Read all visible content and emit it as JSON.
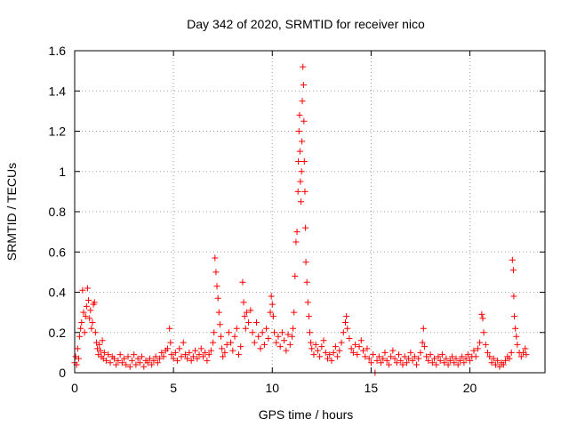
{
  "chart_data": {
    "type": "scatter",
    "title": "Day 342 of 2020, SRMTID for receiver nico",
    "xlabel": "GPS time / hours",
    "ylabel": "SRMTID / TECUs",
    "xlim": [
      0,
      23.8
    ],
    "ylim": [
      0,
      1.6
    ],
    "x_ticks": [
      0,
      5,
      10,
      15,
      20
    ],
    "x_tick_labels": [
      "0",
      "5",
      "10",
      "15",
      "20"
    ],
    "y_ticks": [
      0,
      0.2,
      0.4,
      0.6,
      0.8,
      1.0,
      1.2,
      1.4,
      1.6
    ],
    "y_tick_labels": [
      "0",
      "0.2",
      "0.4",
      "0.6",
      "0.8",
      "1",
      "1.2",
      "1.4",
      "1.6"
    ],
    "grid": true,
    "marker": "+",
    "color": "#ff0000",
    "series": [
      {
        "name": "SRMTID",
        "points": [
          [
            0.0,
            0.05
          ],
          [
            0.05,
            0.08
          ],
          [
            0.1,
            0.04
          ],
          [
            0.15,
            0.12
          ],
          [
            0.2,
            0.07
          ],
          [
            0.25,
            0.18
          ],
          [
            0.3,
            0.22
          ],
          [
            0.35,
            0.25
          ],
          [
            0.4,
            0.41
          ],
          [
            0.45,
            0.3
          ],
          [
            0.5,
            0.2
          ],
          [
            0.55,
            0.28
          ],
          [
            0.6,
            0.33
          ],
          [
            0.65,
            0.42
          ],
          [
            0.7,
            0.36
          ],
          [
            0.75,
            0.27
          ],
          [
            0.8,
            0.31
          ],
          [
            0.85,
            0.22
          ],
          [
            0.9,
            0.25
          ],
          [
            0.95,
            0.34
          ],
          [
            1.0,
            0.35
          ],
          [
            1.05,
            0.2
          ],
          [
            1.1,
            0.15
          ],
          [
            1.15,
            0.12
          ],
          [
            1.2,
            0.09
          ],
          [
            1.25,
            0.14
          ],
          [
            1.3,
            0.11
          ],
          [
            1.35,
            0.08
          ],
          [
            1.4,
            0.16
          ],
          [
            1.45,
            0.07
          ],
          [
            1.5,
            0.1
          ],
          [
            1.6,
            0.06
          ],
          [
            1.7,
            0.09
          ],
          [
            1.8,
            0.05
          ],
          [
            1.9,
            0.08
          ],
          [
            2.0,
            0.07
          ],
          [
            2.1,
            0.04
          ],
          [
            2.2,
            0.06
          ],
          [
            2.3,
            0.09
          ],
          [
            2.4,
            0.05
          ],
          [
            2.5,
            0.07
          ],
          [
            2.6,
            0.04
          ],
          [
            2.7,
            0.08
          ],
          [
            2.8,
            0.03
          ],
          [
            2.9,
            0.06
          ],
          [
            3.0,
            0.09
          ],
          [
            3.1,
            0.04
          ],
          [
            3.2,
            0.07
          ],
          [
            3.3,
            0.05
          ],
          [
            3.4,
            0.08
          ],
          [
            3.5,
            0.03
          ],
          [
            3.6,
            0.06
          ],
          [
            3.7,
            0.05
          ],
          [
            3.8,
            0.07
          ],
          [
            3.9,
            0.04
          ],
          [
            4.0,
            0.06
          ],
          [
            4.1,
            0.08
          ],
          [
            4.2,
            0.05
          ],
          [
            4.3,
            0.07
          ],
          [
            4.4,
            0.1
          ],
          [
            4.5,
            0.08
          ],
          [
            4.6,
            0.11
          ],
          [
            4.7,
            0.12
          ],
          [
            4.8,
            0.22
          ],
          [
            4.85,
            0.15
          ],
          [
            4.9,
            0.09
          ],
          [
            5.0,
            0.07
          ],
          [
            5.1,
            0.1
          ],
          [
            5.2,
            0.06
          ],
          [
            5.3,
            0.12
          ],
          [
            5.4,
            0.08
          ],
          [
            5.5,
            0.15
          ],
          [
            5.6,
            0.09
          ],
          [
            5.7,
            0.07
          ],
          [
            5.8,
            0.1
          ],
          [
            5.9,
            0.06
          ],
          [
            6.0,
            0.08
          ],
          [
            6.1,
            0.11
          ],
          [
            6.2,
            0.07
          ],
          [
            6.3,
            0.09
          ],
          [
            6.4,
            0.12
          ],
          [
            6.5,
            0.08
          ],
          [
            6.6,
            0.1
          ],
          [
            6.7,
            0.06
          ],
          [
            6.8,
            0.09
          ],
          [
            6.9,
            0.11
          ],
          [
            7.0,
            0.15
          ],
          [
            7.05,
            0.2
          ],
          [
            7.1,
            0.57
          ],
          [
            7.15,
            0.5
          ],
          [
            7.2,
            0.43
          ],
          [
            7.25,
            0.37
          ],
          [
            7.3,
            0.3
          ],
          [
            7.35,
            0.24
          ],
          [
            7.4,
            0.18
          ],
          [
            7.45,
            0.12
          ],
          [
            7.5,
            0.08
          ],
          [
            7.6,
            0.1
          ],
          [
            7.7,
            0.14
          ],
          [
            7.8,
            0.2
          ],
          [
            7.9,
            0.15
          ],
          [
            8.0,
            0.11
          ],
          [
            8.1,
            0.18
          ],
          [
            8.2,
            0.22
          ],
          [
            8.3,
            0.09
          ],
          [
            8.4,
            0.13
          ],
          [
            8.5,
            0.45
          ],
          [
            8.55,
            0.35
          ],
          [
            8.6,
            0.28
          ],
          [
            8.65,
            0.22
          ],
          [
            8.7,
            0.3
          ],
          [
            8.8,
            0.25
          ],
          [
            8.9,
            0.31
          ],
          [
            9.0,
            0.2
          ],
          [
            9.1,
            0.15
          ],
          [
            9.2,
            0.25
          ],
          [
            9.3,
            0.18
          ],
          [
            9.4,
            0.12
          ],
          [
            9.5,
            0.2
          ],
          [
            9.6,
            0.14
          ],
          [
            9.7,
            0.22
          ],
          [
            9.8,
            0.17
          ],
          [
            9.9,
            0.3
          ],
          [
            9.95,
            0.38
          ],
          [
            10.0,
            0.34
          ],
          [
            10.05,
            0.28
          ],
          [
            10.1,
            0.2
          ],
          [
            10.2,
            0.15
          ],
          [
            10.3,
            0.18
          ],
          [
            10.4,
            0.13
          ],
          [
            10.5,
            0.2
          ],
          [
            10.6,
            0.16
          ],
          [
            10.7,
            0.11
          ],
          [
            10.8,
            0.19
          ],
          [
            10.9,
            0.14
          ],
          [
            11.0,
            0.18
          ],
          [
            11.05,
            0.22
          ],
          [
            11.1,
            0.3
          ],
          [
            11.15,
            0.48
          ],
          [
            11.2,
            0.65
          ],
          [
            11.25,
            0.7
          ],
          [
            11.3,
            0.9
          ],
          [
            11.32,
            1.05
          ],
          [
            11.35,
            1.2
          ],
          [
            11.38,
            1.28
          ],
          [
            11.4,
            1.1
          ],
          [
            11.42,
            0.95
          ],
          [
            11.45,
            0.85
          ],
          [
            11.48,
            1.0
          ],
          [
            11.5,
            1.15
          ],
          [
            11.52,
            1.35
          ],
          [
            11.55,
            1.52
          ],
          [
            11.58,
            1.43
          ],
          [
            11.6,
            1.25
          ],
          [
            11.62,
            1.05
          ],
          [
            11.65,
            0.9
          ],
          [
            11.68,
            0.72
          ],
          [
            11.7,
            0.55
          ],
          [
            11.75,
            0.45
          ],
          [
            11.8,
            0.35
          ],
          [
            11.85,
            0.28
          ],
          [
            11.9,
            0.2
          ],
          [
            11.95,
            0.15
          ],
          [
            12.0,
            0.12
          ],
          [
            12.1,
            0.09
          ],
          [
            12.2,
            0.14
          ],
          [
            12.3,
            0.11
          ],
          [
            12.4,
            0.08
          ],
          [
            12.5,
            0.13
          ],
          [
            12.6,
            0.16
          ],
          [
            12.7,
            0.1
          ],
          [
            12.8,
            0.07
          ],
          [
            12.9,
            0.09
          ],
          [
            13.0,
            0.06
          ],
          [
            13.1,
            0.1
          ],
          [
            13.2,
            0.13
          ],
          [
            13.3,
            0.08
          ],
          [
            13.4,
            0.11
          ],
          [
            13.5,
            0.15
          ],
          [
            13.6,
            0.2
          ],
          [
            13.7,
            0.25
          ],
          [
            13.75,
            0.28
          ],
          [
            13.8,
            0.22
          ],
          [
            13.9,
            0.17
          ],
          [
            14.0,
            0.12
          ],
          [
            14.1,
            0.1
          ],
          [
            14.2,
            0.14
          ],
          [
            14.3,
            0.09
          ],
          [
            14.4,
            0.13
          ],
          [
            14.5,
            0.16
          ],
          [
            14.6,
            0.11
          ],
          [
            14.7,
            0.08
          ],
          [
            14.8,
            0.12
          ],
          [
            14.9,
            0.07
          ],
          [
            15.0,
            0.05
          ],
          [
            15.1,
            0.09
          ],
          [
            15.2,
            0.0
          ],
          [
            15.3,
            0.06
          ],
          [
            15.4,
            0.08
          ],
          [
            15.5,
            0.05
          ],
          [
            15.6,
            0.07
          ],
          [
            15.7,
            0.1
          ],
          [
            15.8,
            0.06
          ],
          [
            15.9,
            0.04
          ],
          [
            16.0,
            0.08
          ],
          [
            16.1,
            0.11
          ],
          [
            16.2,
            0.07
          ],
          [
            16.3,
            0.05
          ],
          [
            16.4,
            0.09
          ],
          [
            16.5,
            0.06
          ],
          [
            16.6,
            0.04
          ],
          [
            16.7,
            0.08
          ],
          [
            16.8,
            0.05
          ],
          [
            16.9,
            0.07
          ],
          [
            17.0,
            0.1
          ],
          [
            17.1,
            0.06
          ],
          [
            17.2,
            0.08
          ],
          [
            17.3,
            0.04
          ],
          [
            17.4,
            0.07
          ],
          [
            17.5,
            0.1
          ],
          [
            17.6,
            0.15
          ],
          [
            17.65,
            0.22
          ],
          [
            17.7,
            0.13
          ],
          [
            17.8,
            0.08
          ],
          [
            17.9,
            0.06
          ],
          [
            18.0,
            0.09
          ],
          [
            18.1,
            0.05
          ],
          [
            18.2,
            0.07
          ],
          [
            18.3,
            0.04
          ],
          [
            18.4,
            0.08
          ],
          [
            18.5,
            0.06
          ],
          [
            18.6,
            0.09
          ],
          [
            18.7,
            0.05
          ],
          [
            18.8,
            0.07
          ],
          [
            18.9,
            0.04
          ],
          [
            19.0,
            0.06
          ],
          [
            19.1,
            0.08
          ],
          [
            19.2,
            0.05
          ],
          [
            19.3,
            0.07
          ],
          [
            19.4,
            0.04
          ],
          [
            19.5,
            0.06
          ],
          [
            19.6,
            0.08
          ],
          [
            19.7,
            0.05
          ],
          [
            19.8,
            0.07
          ],
          [
            19.9,
            0.09
          ],
          [
            20.0,
            0.06
          ],
          [
            20.1,
            0.08
          ],
          [
            20.2,
            0.11
          ],
          [
            20.3,
            0.08
          ],
          [
            20.4,
            0.12
          ],
          [
            20.5,
            0.15
          ],
          [
            20.6,
            0.29
          ],
          [
            20.65,
            0.27
          ],
          [
            20.7,
            0.2
          ],
          [
            20.8,
            0.14
          ],
          [
            20.9,
            0.1
          ],
          [
            21.0,
            0.08
          ],
          [
            21.1,
            0.05
          ],
          [
            21.2,
            0.07
          ],
          [
            21.3,
            0.04
          ],
          [
            21.4,
            0.06
          ],
          [
            21.5,
            0.03
          ],
          [
            21.6,
            0.05
          ],
          [
            21.7,
            0.04
          ],
          [
            21.8,
            0.06
          ],
          [
            21.9,
            0.08
          ],
          [
            22.0,
            0.07
          ],
          [
            22.1,
            0.1
          ],
          [
            22.15,
            0.56
          ],
          [
            22.2,
            0.51
          ],
          [
            22.22,
            0.38
          ],
          [
            22.25,
            0.28
          ],
          [
            22.3,
            0.22
          ],
          [
            22.35,
            0.18
          ],
          [
            22.4,
            0.14
          ],
          [
            22.5,
            0.1
          ],
          [
            22.6,
            0.08
          ],
          [
            22.7,
            0.1
          ],
          [
            22.8,
            0.12
          ],
          [
            22.85,
            0.09
          ]
        ]
      }
    ]
  }
}
